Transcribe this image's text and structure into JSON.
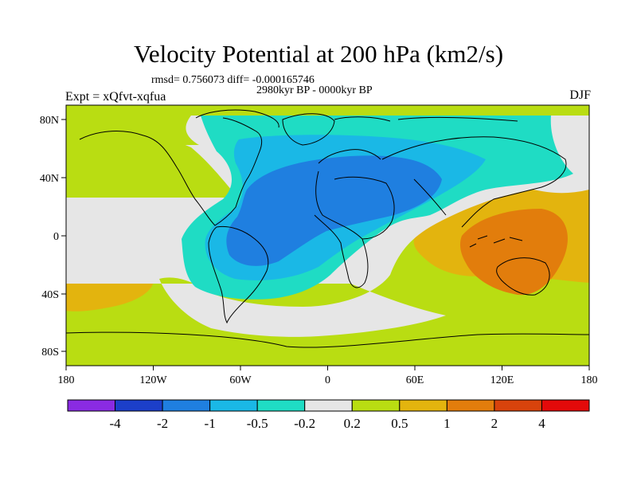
{
  "title": "Velocity Potential at 200 hPa (km2/s)",
  "stats": "rmsd= 0.756073 diff= -0.000165746",
  "period": "2980kyr BP - 0000kyr BP",
  "experiment": "Expt = xQfvt-xqfua",
  "season": "DJF",
  "map": {
    "projection": "cylindrical equidistant",
    "lon_range": [
      -180,
      180
    ],
    "lat_range": [
      -90,
      90
    ],
    "x_ticks": [
      "180",
      "120W",
      "60W",
      "0",
      "60E",
      "120E",
      "180"
    ],
    "y_ticks": [
      "80N",
      "40N",
      "0",
      "40S",
      "80S"
    ]
  },
  "colorbar": {
    "labels": [
      "-4",
      "-2",
      "-1",
      "-0.5",
      "-0.2",
      "0.2",
      "0.5",
      "1",
      "2",
      "4"
    ],
    "colors": [
      "#8a2be2",
      "#1c3fc9",
      "#1f7fe0",
      "#1ab8e6",
      "#1fdcc4",
      "#e6e6e6",
      "#b9dd12",
      "#e3b40e",
      "#e27d0c",
      "#d8430c",
      "#e30a0a"
    ]
  }
}
